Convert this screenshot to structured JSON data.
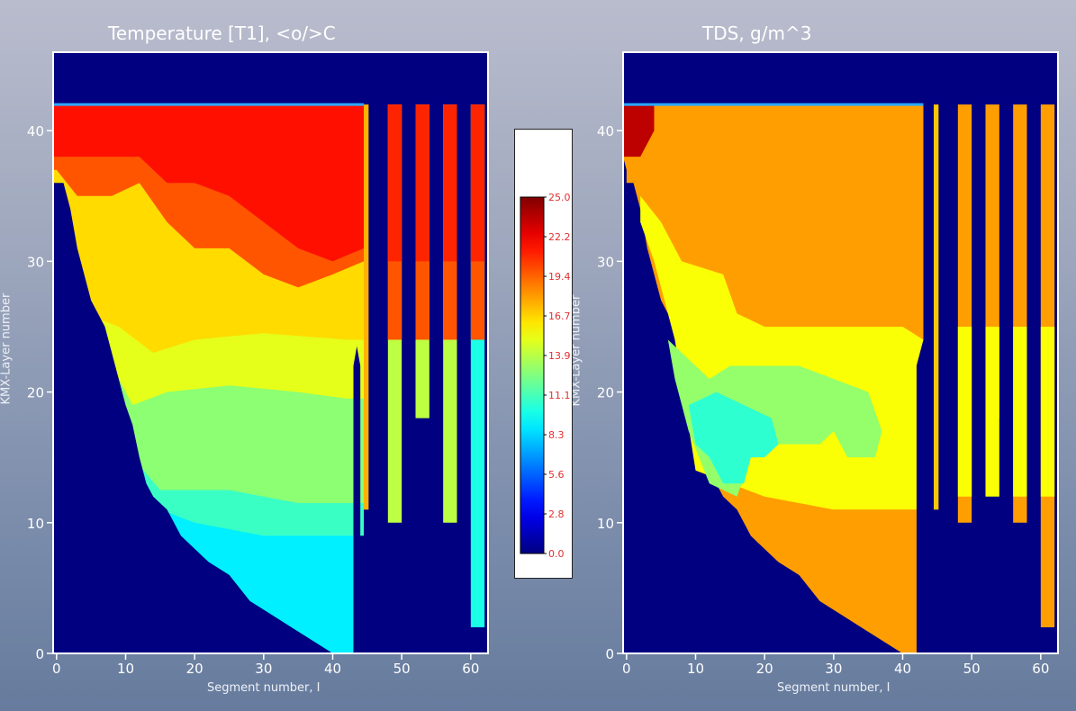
{
  "colors": {
    "background_top": "#b9bccd",
    "background_bottom": "#667b9d",
    "plot_background": "#000080",
    "axis": "#ffffff",
    "colorbar_tick_text": "#e03030"
  },
  "chart_data": [
    {
      "type": "heatmap",
      "title": "Temperature [T1], <o/>C",
      "xlabel": "Segment number, I",
      "ylabel": "KMX-Layer number",
      "xlim": [
        -0.5,
        62.5
      ],
      "ylim": [
        0,
        46
      ],
      "xticks": [
        0,
        10,
        20,
        30,
        40,
        50,
        60
      ],
      "yticks": [
        0,
        10,
        20,
        30,
        40
      ],
      "grid": false,
      "branches": [
        {
          "segments": [
            0,
            44
          ],
          "top_layer": 42
        },
        {
          "segments": [
            48,
            50
          ],
          "top_layer": 42,
          "bottom_layer": 10
        },
        {
          "segments": [
            52,
            54
          ],
          "top_layer": 42,
          "bottom_layer": 18
        },
        {
          "segments": [
            56,
            58
          ],
          "top_layer": 42,
          "bottom_layer": 10
        },
        {
          "segments": [
            60,
            62
          ],
          "top_layer": 42,
          "bottom_layer": 2
        }
      ],
      "main_branch_profile": {
        "segment": [
          0,
          4,
          8,
          10,
          14,
          20,
          25,
          30,
          35,
          40,
          42,
          42.5,
          44,
          44.5
        ],
        "layer_top": [
          42,
          42,
          42,
          42,
          42,
          42,
          42,
          42,
          42,
          42,
          42,
          42,
          42,
          42
        ],
        "water_temperature_zones": [
          {
            "value": 21.5,
            "layer_range": [
              30,
              42
            ]
          },
          {
            "value": 19.8,
            "layer_range": [
              24,
              30
            ]
          },
          {
            "value": 16.5,
            "layer_range": [
              20,
              24
            ]
          },
          {
            "value": 15.0,
            "layer_range": [
              13.5,
              20
            ]
          },
          {
            "value": 12.8,
            "layer_range": [
              11.5,
              13.5
            ]
          },
          {
            "value": 10.8,
            "layer_range": [
              9,
              11.5
            ]
          },
          {
            "value": 9.0,
            "layer_range": [
              0,
              9
            ]
          }
        ]
      },
      "tributary_temperatures": [
        {
          "segments": [
            48,
            50
          ],
          "surface": 21.0,
          "mid": 19.8,
          "deep": 14.0
        },
        {
          "segments": [
            52,
            54
          ],
          "surface": 21.0,
          "mid": 19.8,
          "deep": 14.0
        },
        {
          "segments": [
            56,
            58
          ],
          "surface": 21.0,
          "mid": 19.8,
          "deep": 14.0
        },
        {
          "segments": [
            60,
            62
          ],
          "surface": 21.0,
          "mid": 19.8,
          "deep": 10.0
        }
      ]
    },
    {
      "type": "heatmap",
      "title": "TDS, g/m^3",
      "xlabel": "Segment number, I",
      "ylabel": "KMX-Layer number",
      "xlim": [
        -0.5,
        62.5
      ],
      "ylim": [
        0,
        46
      ],
      "xticks": [
        0,
        10,
        20,
        30,
        40,
        50,
        60
      ],
      "yticks": [
        0,
        10,
        20,
        30,
        40
      ],
      "grid": false,
      "value_zones": [
        {
          "value": 23.5,
          "description_region": "segments 0-3, layers 38-42"
        },
        {
          "value": 18.0,
          "region": "upper"
        },
        {
          "value": 15.5,
          "region": "middle"
        },
        {
          "value": 13.0,
          "region": "middle-left"
        },
        {
          "value": 10.5,
          "region": "segments 12-22, layers 14-20"
        },
        {
          "value": 18.0,
          "region": "lower"
        }
      ]
    },
    {
      "type": "colorbar",
      "vmin": 0.0,
      "vmax": 25.0,
      "tick_labels": [
        "25.0",
        "22.2",
        "19.4",
        "16.7",
        "13.9",
        "11.1",
        "8.3",
        "5.6",
        "2.8",
        "0.0"
      ],
      "colormap": "jet"
    }
  ]
}
